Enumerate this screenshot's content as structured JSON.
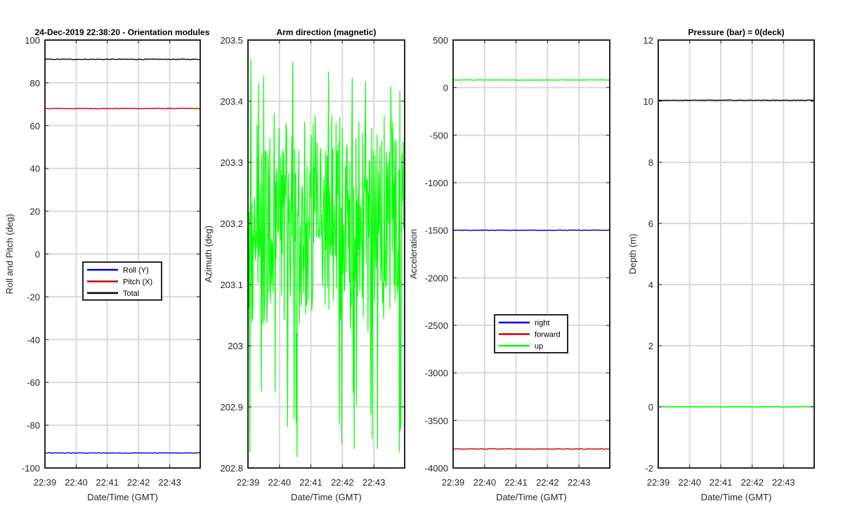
{
  "figure_title": "24-Dec-2019 22:38:20 - Orientation modules",
  "chart_data": [
    {
      "type": "line",
      "title": "",
      "xlabel": "Date/Time (GMT)",
      "ylabel": "Roll and Pitch (deg)",
      "xlim": [
        22.65,
        22.733
      ],
      "ylim": [
        -100,
        100
      ],
      "x_ticks": [
        22.65,
        22.6667,
        22.6833,
        22.7,
        22.7167
      ],
      "x_tick_labels": [
        "22:39",
        "22:40",
        "22:41",
        "22:42",
        "22:43"
      ],
      "y_ticks": [
        -100,
        -80,
        -60,
        -40,
        -20,
        0,
        20,
        40,
        60,
        80,
        100
      ],
      "y_tick_labels": [
        "-100",
        "-80",
        "-60",
        "-40",
        "-20",
        "0",
        "20",
        "40",
        "60",
        "80",
        "100"
      ],
      "grid": true,
      "legend": "center",
      "series": [
        {
          "name": "Roll (Y)",
          "color": "#0000cc",
          "value": -93,
          "noise": 0.15
        },
        {
          "name": "Pitch (X)",
          "color": "#cc0000",
          "value": 68,
          "noise": 0.15
        },
        {
          "name": "Total",
          "color": "#000000",
          "value": 91,
          "noise": 0.15
        }
      ]
    },
    {
      "type": "line",
      "title": "Arm direction (magnetic)",
      "xlabel": "Date/Time (GMT)",
      "ylabel": "Azimuth (deg)",
      "xlim": [
        22.65,
        22.733
      ],
      "ylim": [
        202.8,
        203.5
      ],
      "x_ticks": [
        22.65,
        22.6667,
        22.6833,
        22.7,
        22.7167
      ],
      "x_tick_labels": [
        "22:39",
        "22:40",
        "22:41",
        "22:42",
        "22:43"
      ],
      "y_ticks": [
        202.8,
        202.9,
        203,
        203.1,
        203.2,
        203.3,
        203.4,
        203.5
      ],
      "y_tick_labels": [
        "202.8",
        "202.9",
        "203",
        "203.1",
        "203.2",
        "203.3",
        "203.4",
        "203.5"
      ],
      "grid": true,
      "series": [
        {
          "name": "",
          "color": "#00ff00",
          "value": 203.2,
          "noise": 0.1,
          "min": 202.81,
          "max": 203.49
        }
      ]
    },
    {
      "type": "line",
      "title": "",
      "xlabel": "Date/Time (GMT)",
      "ylabel": "Acceleration",
      "xlim": [
        22.65,
        22.733
      ],
      "ylim": [
        -4000,
        500
      ],
      "x_ticks": [
        22.65,
        22.6667,
        22.6833,
        22.7,
        22.7167
      ],
      "x_tick_labels": [
        "22:39",
        "22:40",
        "22:41",
        "22:42",
        "22:43"
      ],
      "y_ticks": [
        -4000,
        -3500,
        -3000,
        -2500,
        -2000,
        -1500,
        -1000,
        -500,
        0,
        500
      ],
      "y_tick_labels": [
        "-4000",
        "-3500",
        "-3000",
        "-2500",
        "-2000",
        "-1500",
        "-1000",
        "-500",
        "0",
        "500"
      ],
      "grid": true,
      "legend": "lower-center",
      "series": [
        {
          "name": "right",
          "color": "#0000cc",
          "value": -1500,
          "noise": 3
        },
        {
          "name": "forward",
          "color": "#cc0000",
          "value": -3800,
          "noise": 3
        },
        {
          "name": "up",
          "color": "#00ff00",
          "value": 80,
          "noise": 3
        }
      ]
    },
    {
      "type": "line",
      "title": "Pressure (bar) = 0(deck)",
      "xlabel": "Date/Time (GMT)",
      "ylabel": "Depth (m)",
      "xlim": [
        22.65,
        22.733
      ],
      "ylim": [
        -2,
        12
      ],
      "x_ticks": [
        22.65,
        22.6667,
        22.6833,
        22.7,
        22.7167
      ],
      "x_tick_labels": [
        "22:39",
        "22:40",
        "22:41",
        "22:42",
        "22:43"
      ],
      "y_ticks": [
        -2,
        0,
        2,
        4,
        6,
        8,
        10,
        12
      ],
      "y_tick_labels": [
        "-2",
        "0",
        "2",
        "4",
        "6",
        "8",
        "10",
        "12"
      ],
      "grid": true,
      "series": [
        {
          "name": "",
          "color": "#000000",
          "value": 10.03,
          "noise": 0.01
        },
        {
          "name": "",
          "color": "#00ff00",
          "value": 0.0,
          "noise": 0.01
        }
      ]
    }
  ]
}
